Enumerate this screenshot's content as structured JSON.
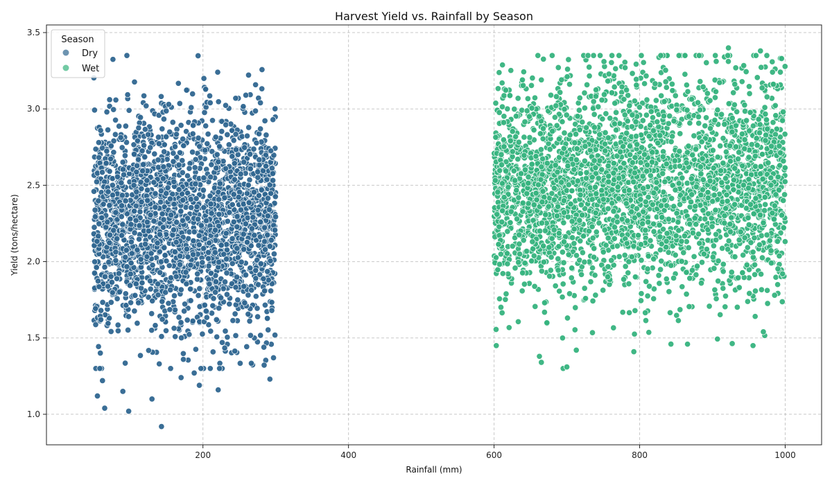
{
  "chart_data": {
    "type": "scatter",
    "title": "Harvest Yield vs. Rainfall by Season",
    "xlabel": "Rainfall (mm)",
    "ylabel": "Yield (tons/hectare)",
    "xlim": [
      -15,
      1050
    ],
    "ylim": [
      0.8,
      3.55
    ],
    "xticks": [
      200,
      400,
      600,
      800,
      1000
    ],
    "yticks": [
      1.0,
      1.5,
      2.0,
      2.5,
      3.0,
      3.5
    ],
    "grid": true,
    "legend": {
      "title": "Season",
      "placement": "top-left"
    },
    "series": [
      {
        "name": "Dry",
        "color": "#2f6690",
        "x_range": [
          50,
          300
        ],
        "y_center": 2.25,
        "y_spread": 0.35,
        "points": [
          [
            143,
            0.92
          ],
          [
            98,
            1.02
          ],
          [
            65,
            1.04
          ],
          [
            55,
            1.12
          ],
          [
            130,
            1.1
          ],
          [
            90,
            1.15
          ],
          [
            62,
            1.22
          ],
          [
            170,
            1.24
          ],
          [
            188,
            1.27
          ],
          [
            195,
            1.19
          ],
          [
            221,
            1.16
          ],
          [
            292,
            1.23
          ],
          [
            297,
            1.37
          ],
          [
            140,
            1.33
          ],
          [
            153,
            3.03
          ],
          [
            122,
            3.02
          ],
          [
            68,
            2.98
          ],
          [
            259,
            3.09
          ],
          [
            245,
            3.07
          ],
          [
            210,
            3.04
          ],
          [
            279,
            3.04
          ]
        ]
      },
      {
        "name": "Wet",
        "color": "#36b37e",
        "x_range": [
          600,
          1000
        ],
        "y_center": 2.5,
        "y_spread": 0.35,
        "points": [
          [
            603,
            1.45
          ],
          [
            665,
            1.34
          ],
          [
            700,
            1.31
          ],
          [
            713,
            1.42
          ],
          [
            792,
            1.41
          ],
          [
            843,
            1.46
          ],
          [
            970,
            1.54
          ],
          [
            922,
            3.4
          ],
          [
            966,
            3.38
          ],
          [
            829,
            3.35
          ],
          [
            995,
            3.33
          ],
          [
            780,
            3.27
          ],
          [
            701,
            3.26
          ],
          [
            639,
            3.19
          ],
          [
            611,
            3.17
          ],
          [
            665,
            3.19
          ],
          [
            751,
            3.31
          ]
        ]
      }
    ]
  }
}
